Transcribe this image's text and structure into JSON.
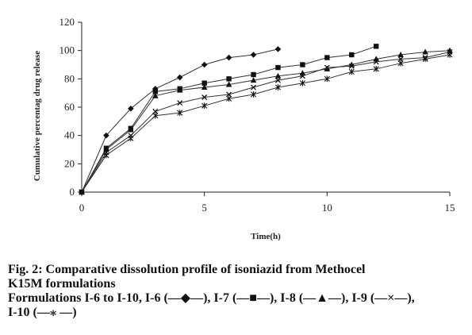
{
  "chart_data": {
    "type": "line",
    "xlabel": "Time(h)",
    "ylabel": "Cumulative percentag drug release",
    "xlim": [
      0,
      15
    ],
    "ylim": [
      0,
      120
    ],
    "xticks": [
      "0",
      "5",
      "10",
      "15"
    ],
    "yticks": [
      "0",
      "20",
      "40",
      "60",
      "80",
      "100",
      "120"
    ],
    "grid": false,
    "series": [
      {
        "name": "I-6",
        "marker": "diamond",
        "x": [
          0,
          1,
          2,
          3,
          4,
          5,
          6,
          7,
          8
        ],
        "y": [
          0,
          40,
          59,
          73,
          81,
          90,
          95,
          97,
          101
        ]
      },
      {
        "name": "I-7",
        "marker": "square",
        "x": [
          0,
          1,
          2,
          3,
          4,
          5,
          6,
          7,
          8,
          9,
          10,
          11,
          12
        ],
        "y": [
          0,
          31,
          45,
          71,
          73,
          77,
          80,
          83,
          88,
          90,
          95,
          97,
          103
        ]
      },
      {
        "name": "I-8",
        "marker": "triangle",
        "x": [
          0,
          1,
          2,
          3,
          4,
          5,
          6,
          7,
          8,
          9,
          10,
          11,
          12,
          13,
          14,
          15
        ],
        "y": [
          0,
          30,
          44,
          68,
          72,
          74,
          76,
          79,
          82,
          84,
          87,
          90,
          94,
          97,
          99,
          100
        ]
      },
      {
        "name": "I-9",
        "marker": "x",
        "x": [
          0,
          1,
          2,
          3,
          4,
          5,
          6,
          7,
          8,
          9,
          10,
          11,
          12,
          13,
          14,
          15
        ],
        "y": [
          0,
          28,
          40,
          57,
          63,
          67,
          69,
          74,
          79,
          82,
          88,
          89,
          92,
          94,
          95,
          99
        ]
      },
      {
        "name": "I-10",
        "marker": "star",
        "x": [
          0,
          1,
          2,
          3,
          4,
          5,
          6,
          7,
          8,
          9,
          10,
          11,
          12,
          13,
          14,
          15
        ],
        "y": [
          0,
          26,
          38,
          54,
          56,
          61,
          66,
          69,
          74,
          77,
          80,
          85,
          87,
          91,
          94,
          97
        ]
      }
    ]
  },
  "caption": {
    "line1": "Fig. 2: Comparative dissolution profile of isoniazid from Methocel",
    "line2": "K15M formulations",
    "line3": "Formulations I-6 to I-10, I-6 (—◆—), I-7 (—■—), I-8 (—▲—), I-9 (—×—),",
    "line4": "I-10 (—⁎ —)"
  }
}
